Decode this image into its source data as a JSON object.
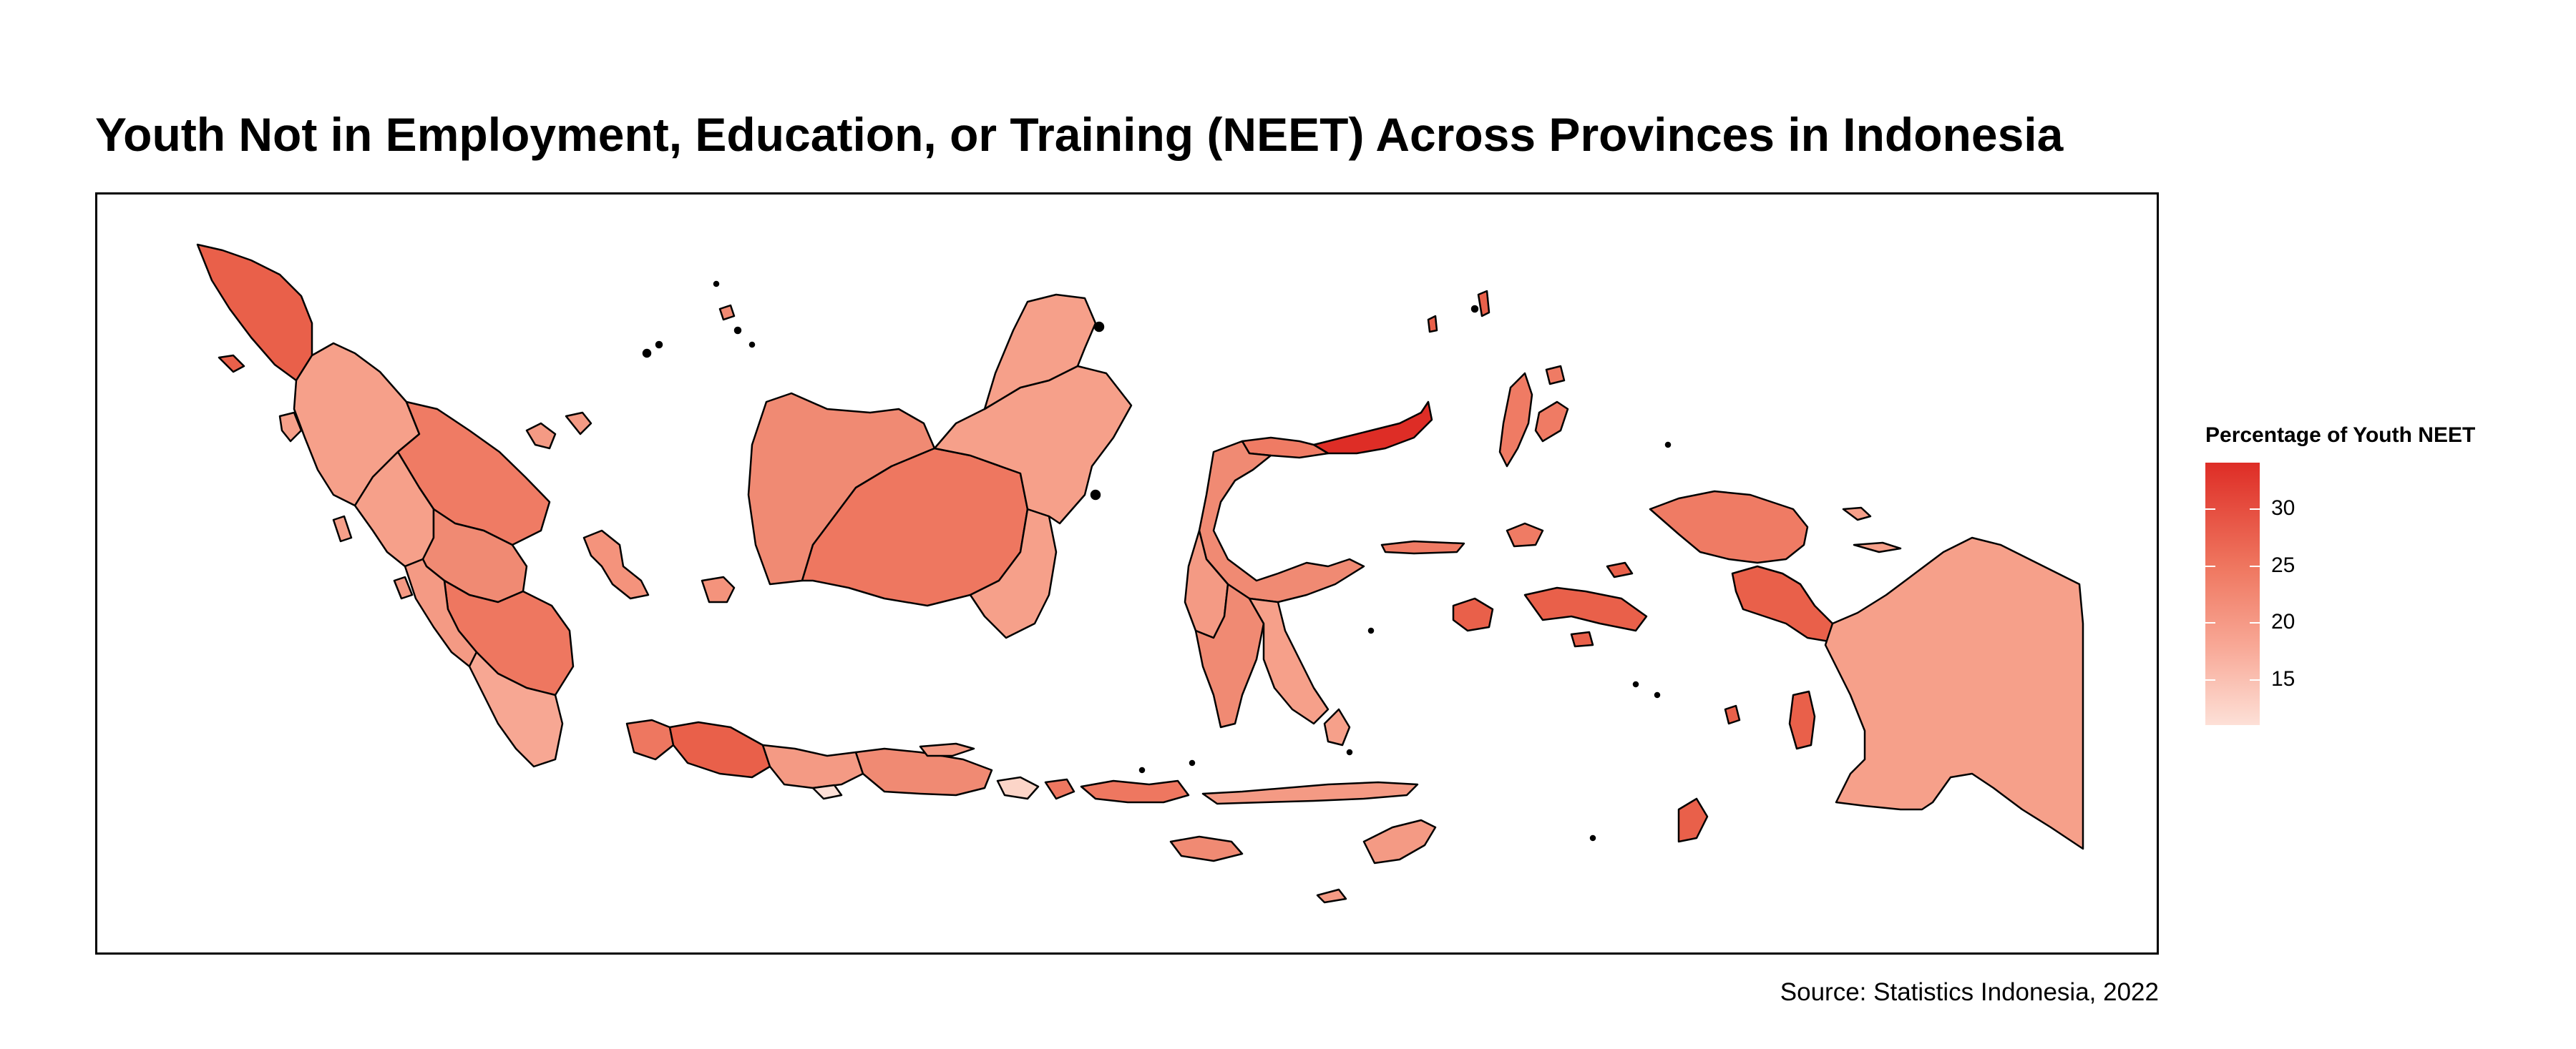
{
  "title": "Youth Not in Employment, Education, or Training (NEET) Across Provinces in Indonesia",
  "caption": "Source: Statistics Indonesia, 2022",
  "legend": {
    "title": "Percentage of Youth NEET",
    "ticks": [
      {
        "label": "30",
        "value": 30
      },
      {
        "label": "25",
        "value": 25
      },
      {
        "label": "20",
        "value": 20
      },
      {
        "label": "15",
        "value": 15
      }
    ],
    "range": [
      11,
      34
    ],
    "colors": {
      "low": "#fde0d7",
      "mid": "#f4937c",
      "high": "#de2d26"
    }
  }
}
